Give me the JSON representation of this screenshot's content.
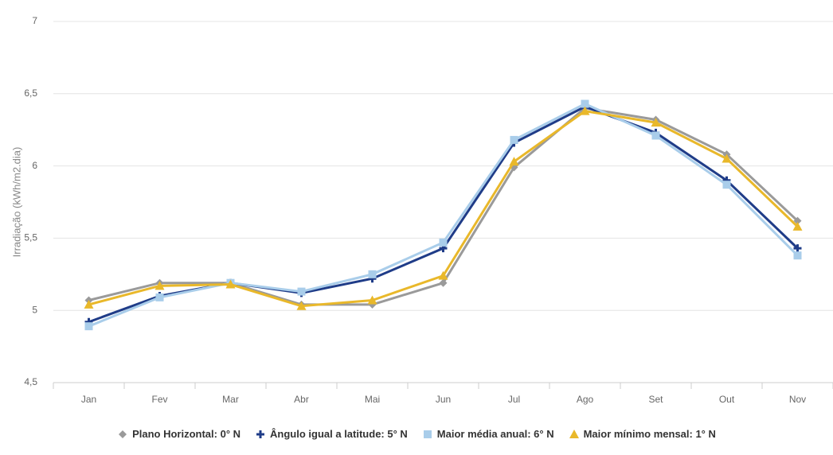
{
  "chart_data": {
    "type": "line",
    "y_label": "Irradiação (kWh/m2.dia)",
    "categories": [
      "Jan",
      "Fev",
      "Mar",
      "Abr",
      "Mai",
      "Jun",
      "Jul",
      "Ago",
      "Set",
      "Out",
      "Nov"
    ],
    "series": [
      {
        "name": "Plano Horizontal: 0° N",
        "color": "#9a9a9a",
        "values": [
          5.07,
          5.19,
          5.19,
          5.04,
          5.04,
          5.19,
          5.99,
          6.4,
          6.32,
          6.08,
          5.62
        ]
      },
      {
        "name": "Ângulo igual a latitude: 5° N",
        "color": "#1f3c88",
        "values": [
          4.92,
          5.1,
          5.19,
          5.12,
          5.22,
          5.43,
          6.16,
          6.41,
          6.23,
          5.9,
          5.43
        ]
      },
      {
        "name": "Maior média anual: 6° N",
        "color": "#a9cdea",
        "values": [
          4.89,
          5.09,
          5.19,
          5.13,
          5.25,
          5.47,
          6.18,
          6.43,
          6.21,
          5.87,
          5.38
        ]
      },
      {
        "name": "Maior mínimo mensal: 1° N",
        "color": "#e9b82a",
        "values": [
          5.04,
          5.17,
          5.18,
          5.03,
          5.07,
          5.24,
          6.03,
          6.38,
          6.3,
          6.05,
          5.58
        ]
      }
    ],
    "ylim": [
      4.5,
      7
    ],
    "yticks": [
      {
        "value": 4.5,
        "label": "4,5"
      },
      5,
      {
        "value": 5.5,
        "label": "5,5"
      },
      6,
      {
        "value": 6.5,
        "label": "6,5"
      },
      7
    ],
    "grid": true
  }
}
